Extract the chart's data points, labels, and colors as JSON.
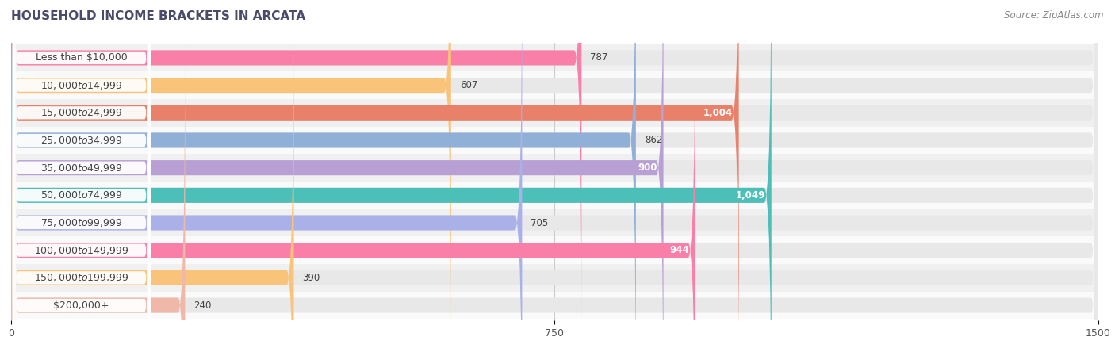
{
  "title": "HOUSEHOLD INCOME BRACKETS IN ARCATA",
  "source": "Source: ZipAtlas.com",
  "categories": [
    "Less than $10,000",
    "$10,000 to $14,999",
    "$15,000 to $24,999",
    "$25,000 to $34,999",
    "$35,000 to $49,999",
    "$50,000 to $74,999",
    "$75,000 to $99,999",
    "$100,000 to $149,999",
    "$150,000 to $199,999",
    "$200,000+"
  ],
  "values": [
    787,
    607,
    1004,
    862,
    900,
    1049,
    705,
    944,
    390,
    240
  ],
  "bar_colors": [
    "#f97fa8",
    "#f9c47a",
    "#e8806a",
    "#90b0d8",
    "#b89fd4",
    "#4bbfb8",
    "#aab0e8",
    "#f97fa8",
    "#f9c47a",
    "#f0b8a8"
  ],
  "value_inside": [
    false,
    false,
    true,
    false,
    true,
    true,
    false,
    true,
    false,
    false
  ],
  "xlim": [
    0,
    1500
  ],
  "xticks": [
    0,
    750,
    1500
  ],
  "row_bg_colors": [
    "#f0f0f0",
    "#fafafa"
  ],
  "bar_bg_color": "#e8e8e8",
  "white_color": "#ffffff",
  "title_fontsize": 11,
  "source_fontsize": 8.5,
  "label_fontsize": 8.5,
  "category_fontsize": 9,
  "value_labels": [
    "787",
    "607",
    "1,004",
    "862",
    "900",
    "1,049",
    "705",
    "944",
    "390",
    "240"
  ],
  "title_color": "#4a4a6a",
  "source_color": "#888888",
  "text_color": "#444444"
}
